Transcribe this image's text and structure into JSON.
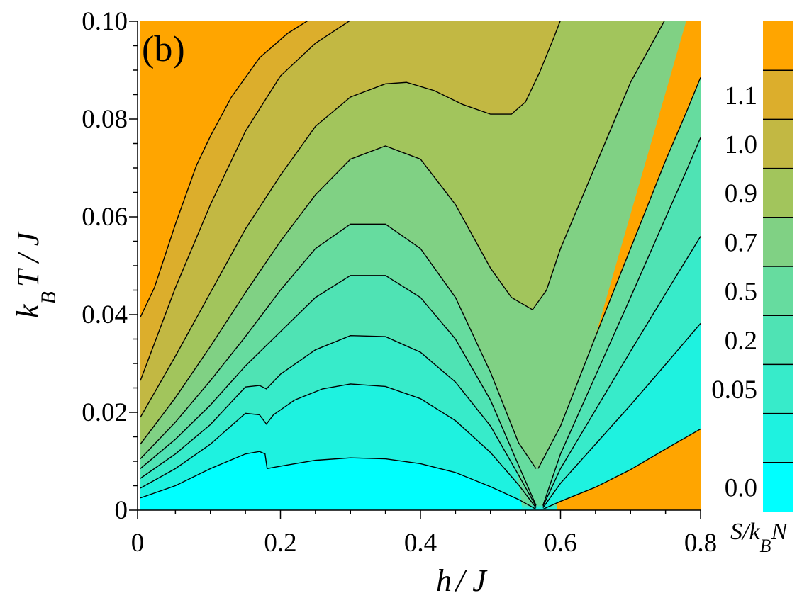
{
  "chart_data": {
    "type": "contour",
    "panel_label": "(b)",
    "xlabel": {
      "main": "h",
      "rest": "/ J"
    },
    "ylabel": {
      "k": "k",
      "sub": "B",
      "rest": "T / J"
    },
    "xlim": [
      0,
      0.8
    ],
    "ylim": [
      0,
      0.1
    ],
    "x_ticks": [
      {
        "value": 0,
        "label": "0"
      },
      {
        "value": 0.2,
        "label": "0.2"
      },
      {
        "value": 0.4,
        "label": "0.4"
      },
      {
        "value": 0.6,
        "label": "0.6"
      },
      {
        "value": 0.8,
        "label": "0.8"
      }
    ],
    "y_ticks": [
      {
        "value": 0,
        "label": "0"
      },
      {
        "value": 0.02,
        "label": "0.02"
      },
      {
        "value": 0.04,
        "label": "0.04"
      },
      {
        "value": 0.06,
        "label": "0.06"
      },
      {
        "value": 0.08,
        "label": "0.08"
      },
      {
        "value": 0.1,
        "label": "0.10"
      }
    ],
    "colorbar": {
      "title_main": "S/k",
      "title_sub": "B",
      "title_tail": "N",
      "bands": [
        {
          "color": "#00ffff",
          "label": "0.0"
        },
        {
          "color": "#1ef2e0",
          "label": ""
        },
        {
          "color": "#37ebca",
          "label": "0.05"
        },
        {
          "color": "#4fe3b4",
          "label": "0.2"
        },
        {
          "color": "#66dc9f",
          "label": "0.5"
        },
        {
          "color": "#80d184",
          "label": "0.7"
        },
        {
          "color": "#a2c55c",
          "label": "0.9"
        },
        {
          "color": "#c2b843",
          "label": "1.0"
        },
        {
          "color": "#dcae2c",
          "label": "1.1"
        },
        {
          "color": "#ffa500",
          "label": ""
        }
      ]
    },
    "contour_lines": [
      {
        "points": [
          [
            0,
            0.0025
          ],
          [
            0.05,
            0.005
          ],
          [
            0.1,
            0.0085
          ],
          [
            0.15,
            0.0115
          ],
          [
            0.17,
            0.012
          ],
          [
            0.178,
            0.0115
          ],
          [
            0.181,
            0.0085
          ],
          [
            0.2,
            0.009
          ],
          [
            0.25,
            0.0102
          ],
          [
            0.3,
            0.0107
          ],
          [
            0.35,
            0.0105
          ],
          [
            0.4,
            0.0095
          ],
          [
            0.45,
            0.0077
          ],
          [
            0.5,
            0.0048
          ],
          [
            0.54,
            0.0022
          ],
          [
            0.565,
            0.0002
          ]
        ]
      },
      {
        "points": [
          [
            0.575,
            0.0002
          ],
          [
            0.6,
            0.0018
          ],
          [
            0.65,
            0.0047
          ],
          [
            0.7,
            0.0083
          ],
          [
            0.75,
            0.0125
          ],
          [
            0.8,
            0.0166
          ]
        ]
      },
      {
        "points": [
          [
            0,
            0.0045
          ],
          [
            0.05,
            0.0085
          ],
          [
            0.1,
            0.0135
          ],
          [
            0.15,
            0.0198
          ],
          [
            0.17,
            0.0195
          ],
          [
            0.18,
            0.0176
          ],
          [
            0.19,
            0.0195
          ],
          [
            0.22,
            0.0225
          ],
          [
            0.26,
            0.0248
          ],
          [
            0.3,
            0.0258
          ],
          [
            0.35,
            0.0253
          ],
          [
            0.4,
            0.0228
          ],
          [
            0.45,
            0.0183
          ],
          [
            0.5,
            0.0118
          ],
          [
            0.54,
            0.0052
          ],
          [
            0.565,
            0.0005
          ]
        ]
      },
      {
        "points": [
          [
            0.575,
            0.0005
          ],
          [
            0.6,
            0.0055
          ],
          [
            0.65,
            0.0135
          ],
          [
            0.7,
            0.0215
          ],
          [
            0.75,
            0.0298
          ],
          [
            0.8,
            0.0382
          ]
        ]
      },
      {
        "points": [
          [
            0,
            0.0065
          ],
          [
            0.05,
            0.0115
          ],
          [
            0.1,
            0.0175
          ],
          [
            0.15,
            0.0252
          ],
          [
            0.17,
            0.0255
          ],
          [
            0.18,
            0.0248
          ],
          [
            0.2,
            0.0278
          ],
          [
            0.25,
            0.0328
          ],
          [
            0.3,
            0.0357
          ],
          [
            0.35,
            0.0355
          ],
          [
            0.4,
            0.0323
          ],
          [
            0.45,
            0.0262
          ],
          [
            0.5,
            0.0172
          ],
          [
            0.54,
            0.0072
          ],
          [
            0.565,
            0.0008
          ]
        ]
      },
      {
        "points": [
          [
            0.575,
            0.0008
          ],
          [
            0.6,
            0.0085
          ],
          [
            0.65,
            0.0205
          ],
          [
            0.7,
            0.0325
          ],
          [
            0.75,
            0.0443
          ],
          [
            0.8,
            0.056
          ]
        ]
      },
      {
        "points": [
          [
            0,
            0.0085
          ],
          [
            0.05,
            0.0145
          ],
          [
            0.1,
            0.0215
          ],
          [
            0.15,
            0.0295
          ],
          [
            0.2,
            0.0365
          ],
          [
            0.25,
            0.0435
          ],
          [
            0.3,
            0.048
          ],
          [
            0.35,
            0.048
          ],
          [
            0.4,
            0.0435
          ],
          [
            0.45,
            0.035
          ],
          [
            0.5,
            0.0225
          ],
          [
            0.54,
            0.0092
          ],
          [
            0.565,
            0.001
          ]
        ]
      },
      {
        "points": [
          [
            0.575,
            0.001
          ],
          [
            0.6,
            0.0115
          ],
          [
            0.65,
            0.0275
          ],
          [
            0.7,
            0.0435
          ],
          [
            0.75,
            0.0598
          ],
          [
            0.78,
            0.0695
          ],
          [
            0.8,
            0.0762
          ]
        ]
      },
      {
        "points": [
          [
            0,
            0.0105
          ],
          [
            0.05,
            0.018
          ],
          [
            0.1,
            0.0265
          ],
          [
            0.15,
            0.0355
          ],
          [
            0.2,
            0.045
          ],
          [
            0.25,
            0.0535
          ],
          [
            0.3,
            0.0585
          ],
          [
            0.35,
            0.0585
          ],
          [
            0.4,
            0.0535
          ],
          [
            0.45,
            0.0435
          ],
          [
            0.5,
            0.0282
          ],
          [
            0.54,
            0.0138
          ],
          [
            0.565,
            0.0085
          ]
        ]
      },
      {
        "points": [
          [
            0.568,
            0.0085
          ],
          [
            0.6,
            0.0172
          ],
          [
            0.65,
            0.0355
          ],
          [
            0.7,
            0.0535
          ],
          [
            0.75,
            0.0715
          ],
          [
            0.78,
            0.0815
          ],
          [
            0.8,
            0.0885
          ]
        ]
      },
      {
        "points": [
          [
            0,
            0.0135
          ],
          [
            0.05,
            0.023
          ],
          [
            0.1,
            0.0335
          ],
          [
            0.15,
            0.0445
          ],
          [
            0.2,
            0.055
          ],
          [
            0.25,
            0.0645
          ],
          [
            0.3,
            0.0718
          ],
          [
            0.35,
            0.0745
          ],
          [
            0.4,
            0.0718
          ],
          [
            0.45,
            0.0625
          ],
          [
            0.5,
            0.0495
          ],
          [
            0.53,
            0.0435
          ],
          [
            0.56,
            0.041
          ],
          [
            0.58,
            0.045
          ],
          [
            0.6,
            0.0535
          ],
          [
            0.65,
            0.0705
          ],
          [
            0.7,
            0.0875
          ],
          [
            0.75,
            0.1005
          ]
        ]
      },
      {
        "points": [
          [
            0,
            0.019
          ],
          [
            0.05,
            0.0315
          ],
          [
            0.1,
            0.0445
          ],
          [
            0.15,
            0.0575
          ],
          [
            0.2,
            0.0685
          ],
          [
            0.25,
            0.0785
          ],
          [
            0.3,
            0.0845
          ],
          [
            0.35,
            0.0872
          ],
          [
            0.38,
            0.0875
          ],
          [
            0.42,
            0.0858
          ],
          [
            0.46,
            0.083
          ],
          [
            0.5,
            0.081
          ],
          [
            0.53,
            0.081
          ],
          [
            0.55,
            0.0835
          ],
          [
            0.57,
            0.0895
          ],
          [
            0.59,
            0.0965
          ],
          [
            0.6,
            0.1002
          ]
        ]
      },
      {
        "points": [
          [
            0,
            0.0265
          ],
          [
            0.05,
            0.0455
          ],
          [
            0.1,
            0.0625
          ],
          [
            0.15,
            0.0775
          ],
          [
            0.2,
            0.0888
          ],
          [
            0.25,
            0.0955
          ],
          [
            0.3,
            0.1002
          ]
        ]
      },
      {
        "points": [
          [
            0,
            0.0395
          ],
          [
            0.02,
            0.0455
          ],
          [
            0.05,
            0.0585
          ],
          [
            0.08,
            0.0705
          ],
          [
            0.1,
            0.0765
          ],
          [
            0.13,
            0.0845
          ],
          [
            0.17,
            0.0925
          ],
          [
            0.21,
            0.0975
          ],
          [
            0.24,
            0.1002
          ]
        ]
      }
    ],
    "regions": [
      {
        "name": "cyan",
        "color": "#00ffff",
        "upper": 0,
        "lower": null
      },
      {
        "name": "band-1",
        "color": "#1ef2e0",
        "upper": 2,
        "lower": 0
      },
      {
        "name": "band-2",
        "color": "#37ebca",
        "upper": 4,
        "lower": 2
      },
      {
        "name": "band-3",
        "color": "#4fe3b4",
        "upper": 6,
        "lower": 4
      },
      {
        "name": "band-4",
        "color": "#66dc9f",
        "upper": 8,
        "lower": 6
      },
      {
        "name": "band-5",
        "color": "#80d184",
        "upper": 10,
        "lower": 8
      },
      {
        "name": "band-6",
        "color": "#a2c55c",
        "upper": 11,
        "lower": 10
      },
      {
        "name": "band-7",
        "color": "#c2b843",
        "upper": 12,
        "lower": 11
      },
      {
        "name": "band-8",
        "color": "#dcae2c",
        "upper": 13,
        "lower": 12
      },
      {
        "name": "orange-top",
        "color": "#ffa500",
        "upper": null,
        "lower": 13
      }
    ],
    "right_regions": [
      {
        "name": "right-band-1",
        "color": "#1ef2e0",
        "upper": 3,
        "lower": 1
      },
      {
        "name": "right-band-2",
        "color": "#37ebca",
        "upper": 5,
        "lower": 3
      },
      {
        "name": "right-band-3",
        "color": "#4fe3b4",
        "upper": 7,
        "lower": 5
      },
      {
        "name": "right-band-4",
        "color": "#66dc9f",
        "upper": 9,
        "lower": 7
      }
    ]
  }
}
